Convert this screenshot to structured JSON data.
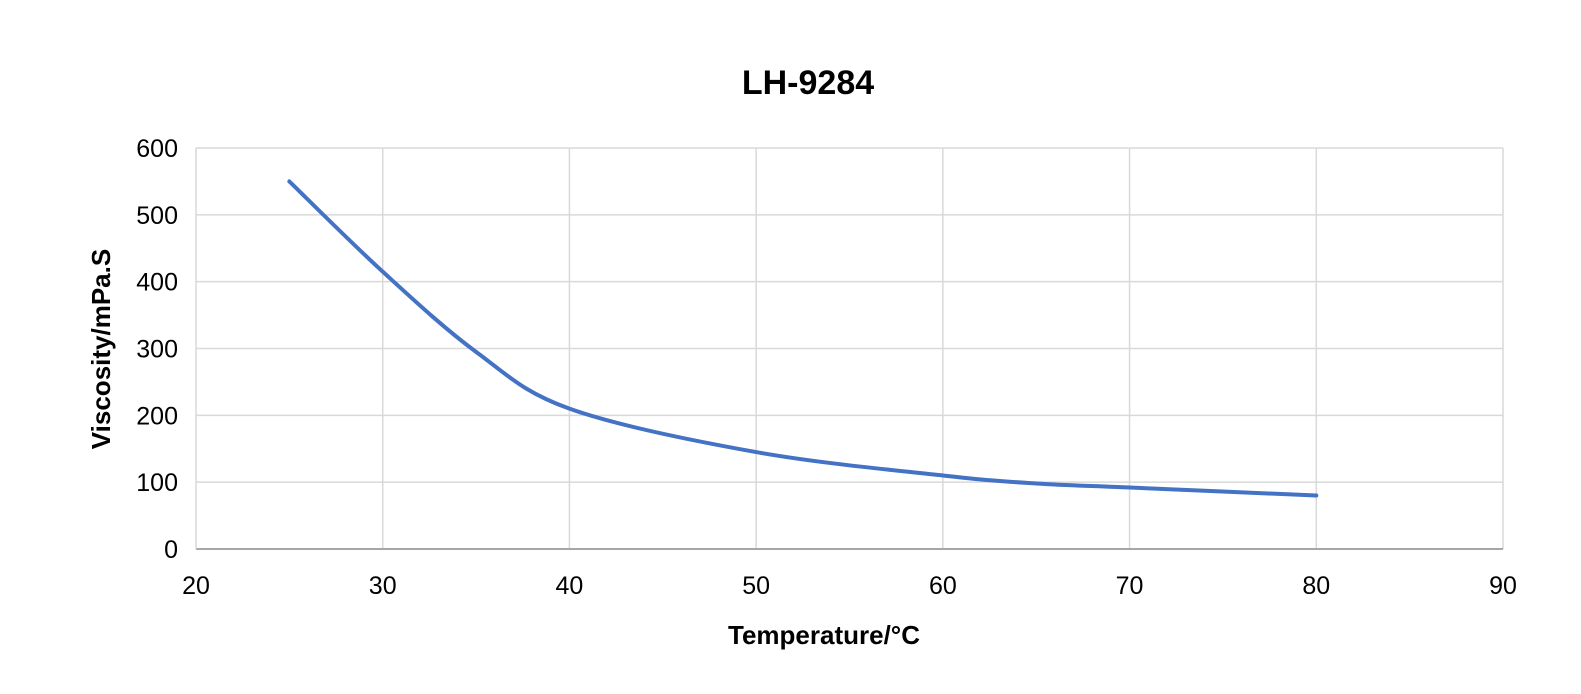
{
  "chart_data": {
    "type": "line",
    "title": "LH-9284",
    "xlabel": "Temperature/°C",
    "ylabel": "Viscosity/mPa.S",
    "xlim": [
      20,
      90
    ],
    "ylim": [
      0,
      600
    ],
    "xticks": [
      20,
      30,
      40,
      50,
      60,
      70,
      80,
      90
    ],
    "yticks": [
      0,
      100,
      200,
      300,
      400,
      500,
      600
    ],
    "grid": true,
    "legend": "none",
    "series": [
      {
        "color": "#4472C4",
        "smooth": true,
        "x": [
          25,
          30,
          35,
          40,
          50,
          60,
          65,
          70,
          80
        ],
        "y": [
          550,
          415,
          295,
          210,
          145,
          110,
          98,
          92,
          80
        ]
      }
    ]
  }
}
